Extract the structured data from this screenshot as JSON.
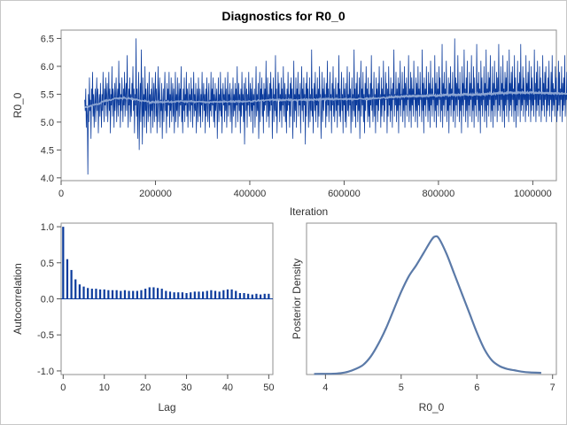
{
  "title": "Diagnostics for R0_0",
  "colors": {
    "trace": "#0b3b9c",
    "smooth": "#8da6d3",
    "acf": "#0b3b9c",
    "density": "#5b7aa8",
    "frame": "#8f8f8f",
    "outer_border": "#c8c8c8"
  },
  "chart_data": [
    {
      "type": "line",
      "panel": "trace",
      "xlabel": "Iteration",
      "ylabel": "R0_0",
      "xlim": [
        0,
        1050000
      ],
      "ylim": [
        3.95,
        6.65
      ],
      "xticks": [
        0,
        200000,
        400000,
        600000,
        800000,
        1000000
      ],
      "yticks": [
        4.0,
        4.5,
        5.0,
        5.5,
        6.0,
        6.5
      ],
      "x_range": [
        50000,
        1050000
      ],
      "n_samples": 900,
      "x_start": 50000,
      "x_step": 1111.1,
      "series": [
        {
          "values": [
            5.4,
            5.2,
            5.6,
            4.9,
            5.3,
            5.1,
            4.06,
            5.5,
            5.0,
            5.8,
            5.2,
            5.4,
            4.7,
            5.6,
            5.3,
            5.9,
            5.1,
            5.5,
            4.9,
            5.3,
            5.6,
            5.0,
            5.4,
            5.8,
            5.2,
            5.6,
            4.8,
            5.3,
            5.5,
            5.1,
            5.7,
            5.3,
            4.9,
            5.5,
            5.2,
            5.9,
            5.4,
            5.0,
            5.6,
            5.3,
            5.8,
            5.1,
            5.5,
            5.7,
            5.0,
            5.4,
            5.9,
            5.2,
            5.6,
            4.8,
            5.5,
            5.3,
            6.0,
            5.1,
            5.6,
            5.4,
            4.9,
            5.7,
            5.2,
            5.5,
            5.8,
            5.0,
            5.4,
            5.6,
            5.1,
            6.1,
            5.3,
            5.7,
            4.9,
            5.5,
            5.2,
            5.8,
            5.4,
            5.0,
            5.6,
            5.3,
            5.9,
            5.1,
            5.5,
            5.7,
            5.2,
            6.2,
            5.4,
            4.9,
            5.6,
            5.3,
            5.8,
            5.0,
            5.5,
            5.1,
            5.7,
            5.4,
            6.0,
            5.2,
            5.6,
            4.8,
            5.5,
            5.3,
            6.5,
            5.1,
            5.6,
            4.7,
            5.4,
            5.9,
            4.5,
            5.3,
            5.7,
            5.0,
            6.3,
            5.4,
            4.6,
            5.8,
            5.1,
            5.5,
            4.9,
            6.0,
            5.2,
            5.6,
            4.8,
            5.4,
            5.7,
            5.0,
            5.3,
            5.9,
            5.1,
            5.5,
            4.8,
            5.6,
            5.2,
            5.8,
            4.9,
            5.4,
            5.7,
            5.0,
            5.5,
            5.9,
            5.1,
            5.6,
            4.8,
            5.3,
            6.0,
            5.0,
            5.5,
            5.8,
            4.9,
            5.4,
            5.2,
            5.7,
            4.7,
            5.3,
            5.6,
            5.0,
            5.5,
            5.9,
            5.2,
            5.4,
            4.8,
            5.7,
            5.1,
            5.6,
            5.3,
            5.9,
            4.9,
            5.5,
            5.2,
            5.8,
            5.0,
            5.4,
            5.7,
            5.1,
            5.6,
            4.8,
            5.3,
            5.9,
            5.0,
            5.5,
            5.2,
            5.8,
            4.9,
            5.4,
            5.7,
            5.1,
            5.6,
            5.3,
            6.0,
            5.0,
            5.4,
            4.8,
            5.6,
            5.2,
            5.8,
            5.0,
            5.5,
            5.3,
            5.9,
            5.1,
            5.6,
            4.9,
            5.4,
            5.7,
            5.2,
            5.5,
            5.0,
            5.8,
            5.3,
            5.6,
            4.9,
            5.4,
            5.9,
            5.1,
            5.5,
            5.2,
            5.7,
            4.8,
            5.3,
            5.6,
            5.0,
            5.8,
            5.4,
            5.1,
            5.6,
            4.9,
            5.5,
            5.3,
            5.9,
            5.0,
            5.4,
            5.7,
            5.2,
            5.5,
            4.8,
            5.6,
            5.1,
            5.8,
            5.3,
            5.0,
            5.5,
            5.7,
            4.9,
            5.4,
            5.2,
            5.9,
            5.1,
            5.6,
            5.3,
            5.8,
            5.0,
            5.5,
            4.9,
            5.7,
            5.2,
            5.4,
            5.6,
            4.7,
            5.3,
            5.8,
            5.0,
            5.5,
            5.2,
            5.9,
            5.1,
            5.6,
            4.8,
            5.4,
            5.7,
            5.3,
            5.5,
            5.0,
            5.8,
            5.2,
            5.6,
            4.9,
            5.4,
            5.9,
            5.1,
            5.5,
            5.3,
            5.7,
            5.0,
            5.4,
            5.6,
            4.8,
            5.3,
            5.8,
            5.1,
            5.5,
            5.2,
            5.7,
            4.9,
            5.6,
            5.3,
            6.0,
            5.0,
            5.4,
            5.7,
            5.2,
            5.5,
            4.8,
            5.6,
            5.1,
            5.9,
            5.3,
            5.5,
            5.0,
            5.7,
            4.6,
            5.4,
            5.8,
            5.2,
            5.6,
            4.9,
            5.5,
            5.3,
            5.9,
            5.1,
            5.4,
            5.7,
            5.0,
            5.6,
            5.2,
            5.8,
            4.8,
            5.5,
            5.3,
            5.6,
            4.9,
            5.4,
            6.0,
            5.1,
            5.5,
            5.2,
            5.7,
            4.7,
            5.3,
            5.9,
            5.0,
            5.6,
            5.4,
            5.8,
            5.1,
            5.5,
            4.8,
            5.7,
            5.2,
            5.6,
            5.3,
            6.1,
            5.0,
            5.4,
            5.8,
            5.1,
            5.5,
            4.9,
            5.7,
            5.2,
            5.9,
            5.3,
            5.6,
            4.7,
            5.4,
            5.8,
            5.0,
            5.5,
            5.2,
            6.2,
            5.1,
            5.6,
            4.8,
            5.3,
            5.9,
            5.4,
            5.7,
            5.0,
            5.5,
            5.2,
            5.8,
            4.9,
            5.6,
            5.3,
            6.0,
            5.1,
            5.4,
            5.7,
            5.0,
            5.5,
            4.8,
            5.6,
            5.2,
            5.9,
            5.3,
            5.5,
            4.9,
            5.7,
            5.1,
            5.8,
            5.4,
            5.6,
            4.7,
            5.3,
            6.1,
            5.0,
            5.5,
            5.2,
            5.8,
            4.9,
            5.6,
            5.4,
            5.9,
            5.1,
            5.5,
            5.3,
            5.7,
            4.8,
            5.4,
            6.0,
            5.2,
            5.6,
            5.0,
            5.8,
            5.3,
            5.5,
            4.6,
            5.7,
            5.1,
            5.9,
            5.4,
            5.6,
            4.9,
            5.3,
            5.8,
            5.0,
            5.5,
            5.2,
            6.3,
            5.1,
            5.6,
            4.8,
            5.4,
            5.7,
            5.2,
            5.9,
            5.0,
            5.5,
            5.3,
            5.8,
            4.9,
            5.6,
            5.1,
            6.0,
            5.4,
            5.5,
            4.7,
            5.3,
            5.9,
            5.0,
            5.6,
            5.2,
            5.8,
            5.4,
            5.5,
            4.9,
            5.7,
            5.1,
            6.1,
            5.3,
            5.6,
            5.0,
            5.4,
            5.9,
            5.2,
            5.5,
            4.8,
            5.7,
            5.3,
            6.0,
            5.1,
            5.6,
            5.0,
            5.4,
            5.8,
            5.2,
            5.5,
            4.9,
            5.7,
            5.3,
            6.2,
            5.1,
            5.6,
            5.0,
            5.4,
            5.9,
            5.2,
            5.5,
            4.8,
            5.8,
            5.3,
            5.6,
            5.0,
            5.7,
            4.9,
            5.4,
            6.0,
            5.2,
            5.5,
            5.1,
            5.9,
            5.3,
            5.6,
            4.8,
            5.4,
            5.8,
            5.0,
            5.5,
            5.2,
            6.3,
            5.1,
            5.6,
            4.9,
            5.7,
            5.3,
            5.9,
            5.0,
            5.5,
            5.2,
            5.8,
            4.7,
            5.4,
            6.1,
            5.1,
            5.6,
            5.3,
            5.9,
            5.0,
            5.5,
            4.8,
            5.7,
            5.2,
            6.0,
            5.4,
            5.6,
            5.0,
            5.8,
            5.1,
            5.5,
            4.9,
            5.7,
            5.3,
            6.2,
            5.2,
            5.6,
            5.0,
            5.4,
            5.9,
            5.1,
            5.5,
            4.8,
            5.8,
            5.3,
            5.6,
            5.0,
            5.7,
            5.2,
            6.0,
            5.4,
            5.5,
            4.9,
            5.8,
            5.1,
            5.6,
            5.3,
            6.1,
            5.0,
            5.5,
            5.2,
            5.9,
            5.4,
            5.7,
            4.8,
            5.6,
            5.1,
            6.0,
            5.3,
            5.5,
            5.0,
            5.8,
            5.2,
            5.6,
            4.9,
            5.7,
            5.4,
            6.3,
            5.1,
            5.5,
            5.3,
            5.9,
            5.0,
            5.6,
            5.2,
            5.8,
            4.8,
            5.7,
            5.3,
            6.1,
            5.1,
            5.5,
            5.4,
            5.9,
            5.0,
            5.6,
            5.2,
            6.0,
            4.9,
            5.7,
            5.3,
            5.8,
            5.1,
            5.5,
            5.4,
            6.2,
            5.0,
            5.6,
            5.2,
            5.9,
            4.9,
            5.8,
            5.3,
            5.6,
            5.1,
            6.1,
            5.4,
            5.5,
            5.0,
            5.8,
            5.2,
            5.7,
            4.9,
            6.0,
            5.3,
            5.6,
            5.1,
            5.9,
            5.4,
            5.5,
            5.0,
            6.3,
            5.2,
            5.7,
            4.8,
            5.8,
            5.3,
            5.6,
            5.1,
            6.0,
            5.4,
            5.5,
            5.0,
            5.9,
            5.2,
            5.7,
            4.9,
            6.1,
            5.3,
            5.6,
            5.1,
            5.8,
            5.4,
            5.5,
            5.0,
            6.2,
            5.2,
            5.7,
            4.9,
            5.9,
            5.3,
            5.6,
            5.1,
            6.0,
            5.4,
            5.8,
            5.0,
            5.5,
            5.2,
            6.4,
            4.9,
            5.7,
            5.3,
            5.9,
            5.1,
            5.6,
            5.4,
            6.1,
            5.0,
            5.5,
            5.2,
            5.8,
            4.8,
            5.7,
            5.3,
            6.0,
            5.1,
            5.6,
            5.4,
            5.9,
            5.0,
            5.5,
            5.2,
            6.5,
            4.9,
            5.8,
            5.3,
            5.7,
            5.1,
            6.2,
            5.4,
            5.6,
            5.0,
            5.9,
            5.2,
            5.5,
            4.8,
            6.0,
            5.3,
            5.7,
            5.1,
            6.3,
            5.4,
            5.6,
            5.0,
            5.8,
            5.2,
            6.1,
            4.9,
            5.5,
            5.3,
            5.9,
            5.1,
            5.7,
            5.4,
            6.2,
            5.0,
            5.6,
            5.2,
            6.0,
            4.9,
            5.8,
            5.3,
            5.5,
            5.1,
            6.4,
            5.4,
            5.7,
            5.0,
            5.9,
            5.2,
            5.6,
            4.8,
            6.1,
            5.3,
            5.8,
            5.1,
            5.5,
            5.4,
            6.0,
            5.0,
            5.7,
            5.2,
            6.3,
            4.9,
            5.6,
            5.3,
            5.9,
            5.1,
            5.8,
            5.4,
            6.2,
            5.0,
            5.5,
            5.2,
            6.0,
            4.9,
            5.7,
            5.3,
            6.1,
            5.1,
            5.6,
            5.4,
            5.9,
            5.0,
            5.8,
            5.2,
            6.4,
            5.3,
            5.5,
            5.1,
            6.0,
            5.4,
            5.7,
            5.0,
            6.2,
            5.2,
            5.6,
            4.9,
            5.9,
            5.3,
            5.8,
            5.1,
            6.1,
            5.4,
            5.5,
            5.0,
            6.3,
            5.2,
            5.7,
            5.3,
            5.9,
            5.1,
            6.0,
            5.4,
            5.6,
            5.0,
            6.2,
            5.2,
            5.8,
            4.9,
            5.5,
            5.3,
            6.1,
            5.1,
            5.7,
            5.4,
            5.9,
            5.0,
            6.4,
            5.2,
            5.6,
            5.3,
            6.0,
            5.1,
            5.8,
            5.4,
            5.5,
            5.0,
            6.2,
            5.2,
            5.7,
            5.3,
            5.9,
            5.1,
            6.1,
            5.4,
            5.6,
            5.0,
            6.0,
            5.2,
            5.8,
            5.3,
            5.5,
            5.1,
            6.3,
            5.4,
            5.7,
            5.0,
            5.9,
            5.2,
            6.1,
            5.3,
            5.6,
            5.1,
            6.0,
            5.4,
            5.8,
            5.0,
            5.5,
            5.2,
            6.2,
            5.3,
            5.7,
            5.1,
            5.9,
            5.4,
            6.0,
            5.0,
            5.6,
            5.2,
            5.8,
            5.3,
            6.1,
            5.1,
            5.5,
            5.4,
            5.9,
            5.0,
            6.2,
            5.2,
            5.7,
            5.3,
            5.6,
            5.1,
            6.0,
            5.4,
            5.8,
            5.0,
            5.5,
            5.2,
            6.1,
            5.3,
            5.9,
            5.1,
            5.6,
            5.4,
            6.0,
            5.0,
            5.7,
            5.2,
            5.8,
            5.3,
            6.2,
            5.1,
            5.5,
            5.4,
            5.9,
            5.0,
            6.0,
            5.2,
            5.6,
            5.3,
            5.8,
            5.1,
            6.1,
            5.4,
            5.7,
            5.0,
            5.5,
            5.2,
            5.9,
            5.3,
            6.0,
            5.1,
            5.6
          ]
        }
      ]
    },
    {
      "type": "bar",
      "panel": "autocorrelation",
      "xlabel": "Lag",
      "ylabel": "Autocorrelation",
      "xlim": [
        -0.5,
        51
      ],
      "ylim": [
        -1.05,
        1.05
      ],
      "xticks": [
        0,
        10,
        20,
        30,
        40,
        50
      ],
      "yticks": [
        1.0,
        0.5,
        0.0,
        -0.5,
        -1.0
      ],
      "ytick_labels": [
        "1.0",
        "0.5",
        "0.0",
        "-0.5",
        "-1.0"
      ],
      "lags": [
        0,
        1,
        2,
        3,
        4,
        5,
        6,
        7,
        8,
        9,
        10,
        11,
        12,
        13,
        14,
        15,
        16,
        17,
        18,
        19,
        20,
        21,
        22,
        23,
        24,
        25,
        26,
        27,
        28,
        29,
        30,
        31,
        32,
        33,
        34,
        35,
        36,
        37,
        38,
        39,
        40,
        41,
        42,
        43,
        44,
        45,
        46,
        47,
        48,
        49,
        50
      ],
      "values": [
        1.0,
        0.55,
        0.4,
        0.27,
        0.2,
        0.17,
        0.15,
        0.14,
        0.14,
        0.13,
        0.13,
        0.12,
        0.12,
        0.12,
        0.11,
        0.12,
        0.11,
        0.11,
        0.11,
        0.12,
        0.14,
        0.16,
        0.16,
        0.15,
        0.14,
        0.11,
        0.1,
        0.09,
        0.09,
        0.09,
        0.08,
        0.09,
        0.1,
        0.1,
        0.1,
        0.11,
        0.12,
        0.11,
        0.1,
        0.12,
        0.13,
        0.13,
        0.11,
        0.08,
        0.08,
        0.07,
        0.06,
        0.07,
        0.06,
        0.07,
        0.07
      ]
    },
    {
      "type": "line",
      "panel": "density",
      "xlabel": "R0_0",
      "ylabel": "Posterior Density",
      "xlim": [
        3.75,
        7.05
      ],
      "xticks": [
        4,
        5,
        6,
        7
      ],
      "x": [
        3.85,
        4.0,
        4.1,
        4.2,
        4.3,
        4.4,
        4.5,
        4.6,
        4.7,
        4.8,
        4.9,
        5.0,
        5.1,
        5.2,
        5.3,
        5.4,
        5.45,
        5.5,
        5.6,
        5.7,
        5.8,
        5.9,
        6.0,
        6.1,
        6.2,
        6.3,
        6.4,
        6.5,
        6.6,
        6.7,
        6.85
      ],
      "y": [
        0.004,
        0.005,
        0.006,
        0.01,
        0.02,
        0.04,
        0.07,
        0.13,
        0.22,
        0.33,
        0.46,
        0.59,
        0.7,
        0.78,
        0.87,
        0.96,
        0.985,
        0.97,
        0.86,
        0.72,
        0.58,
        0.44,
        0.3,
        0.18,
        0.1,
        0.06,
        0.04,
        0.03,
        0.02,
        0.015,
        0.012
      ]
    }
  ]
}
